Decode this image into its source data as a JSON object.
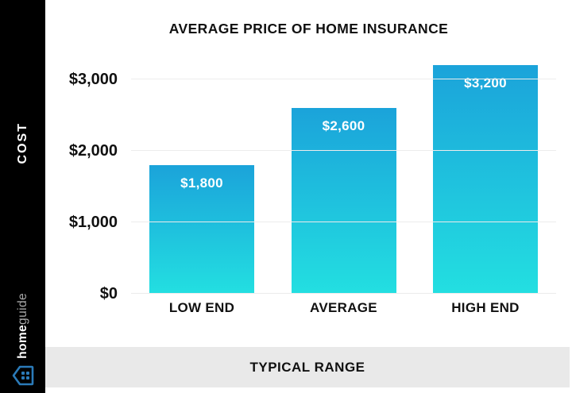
{
  "chart_data": {
    "type": "bar",
    "title": "AVERAGE PRICE OF HOME INSURANCE",
    "categories": [
      "LOW END",
      "AVERAGE",
      "HIGH END"
    ],
    "values": [
      1800,
      2600,
      3200
    ],
    "value_labels": [
      "$1,800",
      "$2,600",
      "$3,200"
    ],
    "y_ticks": [
      "$3,000",
      "$2,000",
      "$1,000",
      "$0"
    ],
    "y_tick_values": [
      3000,
      2000,
      1000,
      0
    ],
    "ylim": [
      0,
      3333
    ],
    "ylabel": "COST",
    "xlabel": "TYPICAL RANGE",
    "grid": true,
    "legend": false,
    "bar_color_top": "#1BA3DA",
    "bar_color_bottom": "#23DFE1"
  },
  "sidebar": {
    "ylabel": "COST",
    "brand_home": "home",
    "brand_guide": "guide",
    "brand_icon": "house-icon",
    "brand_icon_color": "#2b7bb9"
  },
  "footer": {
    "label": "TYPICAL RANGE"
  },
  "colors": {
    "sidebar_bg": "#000000",
    "chart_bg": "#ffffff",
    "footer_bg": "#e9e9e9",
    "grid_line": "#ececec",
    "text": "#111111",
    "bar_value_text": "#ffffff"
  }
}
